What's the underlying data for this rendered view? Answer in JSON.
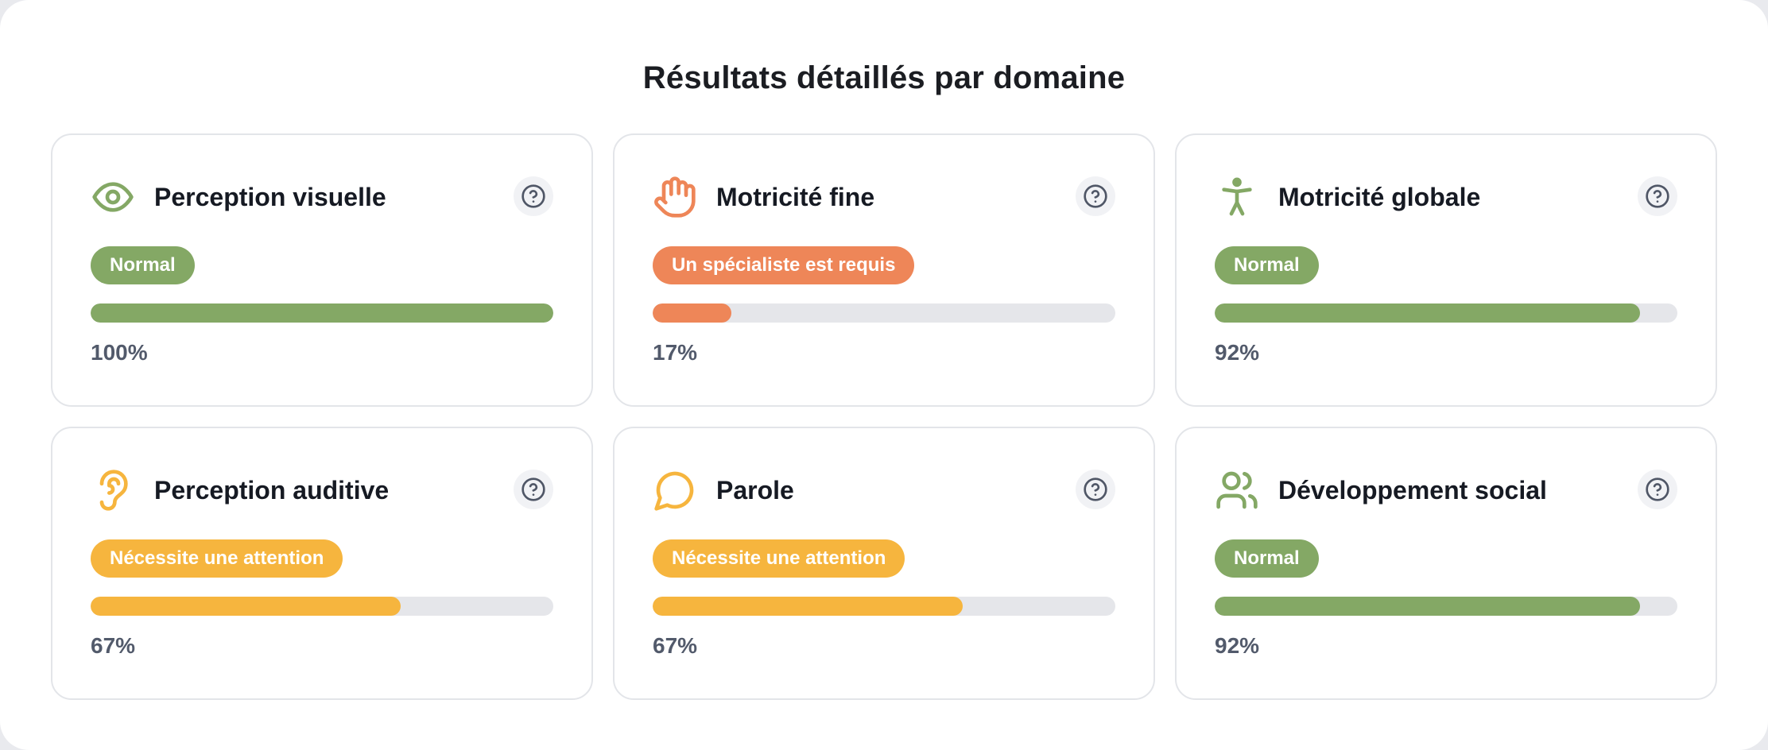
{
  "page": {
    "title": "Résultats détaillés par domaine"
  },
  "colors": {
    "normal": "#84a865",
    "specialist": "#ee8658",
    "attention": "#f6b53e",
    "track": "#e5e6ea",
    "help_icon": "#4f5666"
  },
  "cards": [
    {
      "title": "Perception visuelle",
      "icon": "eye-icon",
      "status_label": "Normal",
      "status": "normal",
      "percent_text": "100%",
      "progress": 1.0
    },
    {
      "title": "Motricité fine",
      "icon": "hand-icon",
      "status_label": "Un spécialiste est requis",
      "status": "specialist",
      "percent_text": "17%",
      "progress": 0.17
    },
    {
      "title": "Motricité globale",
      "icon": "person-standing-icon",
      "status_label": "Normal",
      "status": "normal",
      "percent_text": "92%",
      "progress": 0.92
    },
    {
      "title": "Perception auditive",
      "icon": "ear-icon",
      "status_label": "Nécessite une attention",
      "status": "attention",
      "percent_text": "67%",
      "progress": 0.67
    },
    {
      "title": "Parole",
      "icon": "speech-bubble-icon",
      "status_label": "Nécessite une attention",
      "status": "attention",
      "percent_text": "67%",
      "progress": 0.67
    },
    {
      "title": "Développement social",
      "icon": "users-icon",
      "status_label": "Normal",
      "status": "normal",
      "percent_text": "92%",
      "progress": 0.92
    }
  ]
}
